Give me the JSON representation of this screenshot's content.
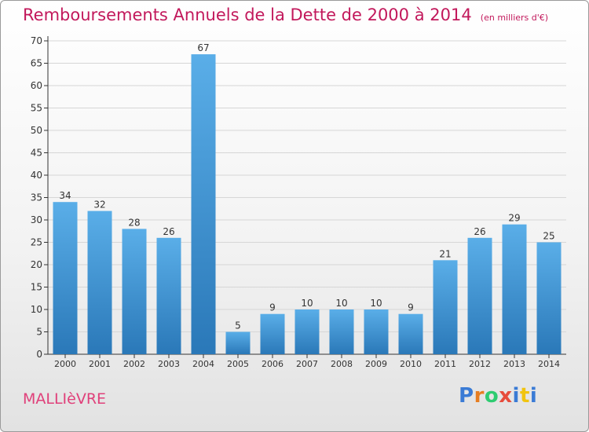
{
  "title": "Remboursements Annuels de la Dette de 2000 à 2014",
  "subtitle": "(en milliers d'€)",
  "place": "MALLIèVRE",
  "logo": {
    "text": "Proxiti",
    "letter_colors": [
      "#3a7bd5",
      "#e67e22",
      "#2ecc71",
      "#e74c3c",
      "#3a7bd5",
      "#f1c40f",
      "#3a7bd5"
    ]
  },
  "colors": {
    "title": "#c2185b",
    "place": "#e0407a",
    "bar_top": "#5aaee8",
    "bar_bottom": "#2a78b8"
  },
  "chart_data": {
    "type": "bar",
    "categories": [
      "2000",
      "2001",
      "2002",
      "2003",
      "2004",
      "2005",
      "2006",
      "2007",
      "2008",
      "2009",
      "2010",
      "2011",
      "2012",
      "2013",
      "2014"
    ],
    "values": [
      34,
      32,
      28,
      26,
      67,
      5,
      9,
      10,
      10,
      10,
      9,
      21,
      26,
      29,
      25
    ],
    "data_labels": [
      "34",
      "32",
      "28",
      "26",
      "67",
      "5",
      "9",
      "10",
      "10",
      "10",
      "9",
      "21",
      "26",
      "29",
      "25"
    ],
    "ylim": [
      0,
      70
    ],
    "yticks": [
      0,
      5,
      10,
      15,
      20,
      25,
      30,
      35,
      40,
      45,
      50,
      55,
      60,
      65,
      70
    ],
    "grid": true,
    "title": "Remboursements Annuels de la Dette de 2000 à 2014",
    "xlabel": "",
    "ylabel": ""
  }
}
